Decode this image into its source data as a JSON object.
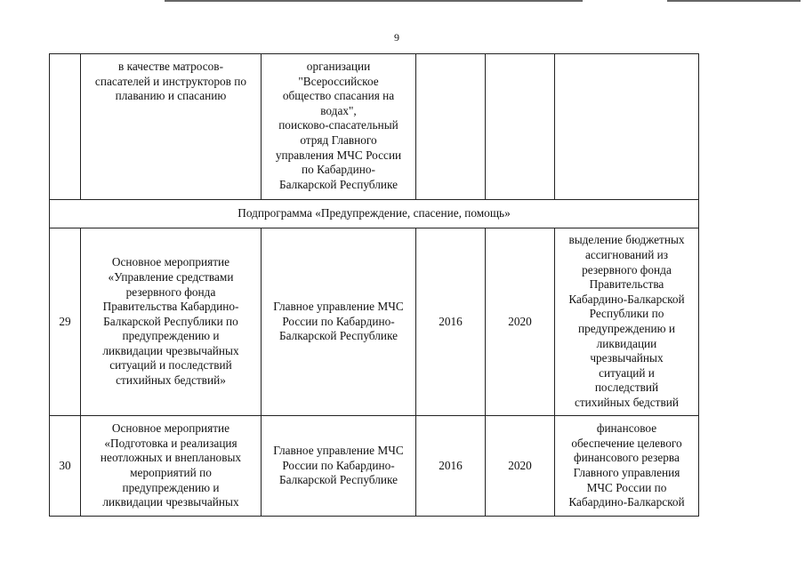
{
  "page_number": "9",
  "rows": [
    {
      "num": "",
      "description": "в качестве матросов-\nспасателей и инструкторов по\nплаванию и спасанию",
      "executor": "организации\n\"Всероссийское\nобщество спасания на\nводах\",\nпоисково-спасательный\nотряд Главного\nуправления МЧС России\nпо Кабардино-\nБалкарской Республике",
      "start": "",
      "end": "",
      "result": ""
    },
    {
      "num": "29",
      "description": "Основное мероприятие\n«Управление средствами\nрезервного фонда\nПравительства Кабардино-\nБалкарской Республики по\nпредупреждению и\nликвидации чрезвычайных\nситуаций и последствий\nстихийных бедствий»",
      "executor": "Главное управление МЧС\nРоссии по Кабардино-\nБалкарской Республике",
      "start": "2016",
      "end": "2020",
      "result": "выделение бюджетных\nассигнований из\nрезервного фонда\nПравительства\nКабардино-Балкарской\nРеспублики по\nпредупреждению и\nликвидации\nчрезвычайных\nситуаций и\nпоследствий\nстихийных бедствий"
    },
    {
      "num": "30",
      "description": "Основное мероприятие\n«Подготовка и реализация\nнеотложных и внеплановых\nмероприятий по\nпредупреждению и\nликвидации чрезвычайных",
      "executor": "Главное управление МЧС\nРоссии по Кабардино-\nБалкарской Республике",
      "start": "2016",
      "end": "2020",
      "result": "финансовое\nобеспечение целевого\nфинансового резерва\nГлавного управления\nМЧС России по\nКабардино-Балкарской"
    }
  ],
  "subprogram": "Подпрограмма «Предупреждение, спасение, помощь»"
}
